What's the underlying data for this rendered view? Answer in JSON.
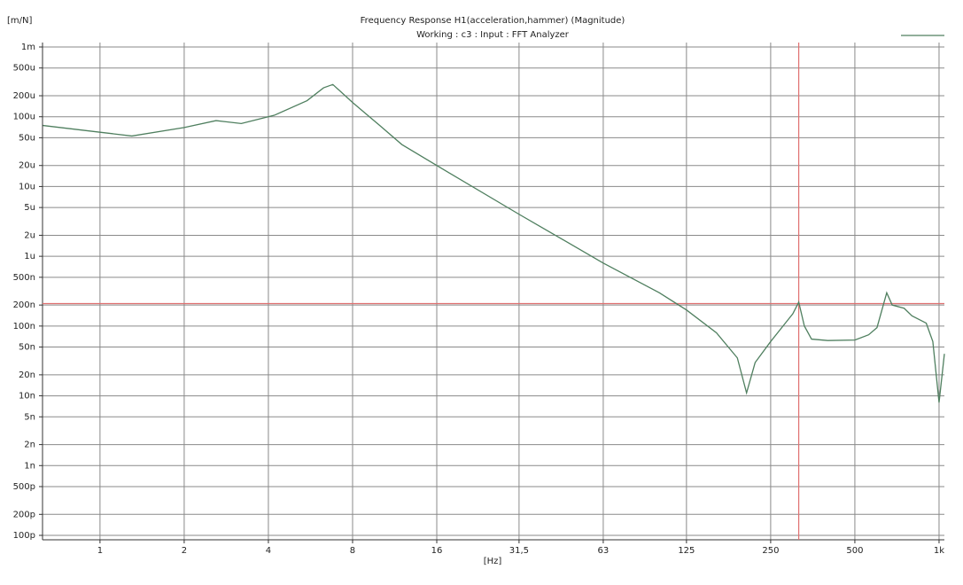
{
  "chart_data": {
    "type": "line",
    "title": "Frequency Response H1(acceleration,hammer) (Magnitude)",
    "subtitle": "Working : c3 : Input : FFT Analyzer",
    "y_label": "[m/N]",
    "x_label": "[Hz]",
    "x_scale": "log",
    "y_scale": "log",
    "grid": true,
    "x": [
      0.625,
      1,
      1.3,
      2,
      2.6,
      3.2,
      4.2,
      5.5,
      6.3,
      6.8,
      8,
      10,
      12,
      16,
      31.5,
      63,
      100,
      125,
      160,
      190,
      205,
      220,
      250,
      300,
      315,
      330,
      350,
      400,
      500,
      560,
      600,
      650,
      680,
      750,
      800,
      900,
      950,
      1000,
      1045
    ],
    "series": [
      {
        "color": "#4f7f5f",
        "values": [
          7.5e-05,
          6e-05,
          5.3e-05,
          7e-05,
          8.8e-05,
          8e-05,
          0.000105,
          0.00017,
          0.00026,
          0.00029,
          0.00016,
          7.5e-05,
          4e-05,
          2e-05,
          4e-06,
          8e-07,
          3e-07,
          1.7e-07,
          8e-08,
          3.5e-08,
          1.1e-08,
          3e-08,
          6e-08,
          1.5e-07,
          2.2e-07,
          1e-07,
          6.5e-08,
          6.2e-08,
          6.3e-08,
          7.5e-08,
          9.5e-08,
          3e-07,
          2e-07,
          1.8e-07,
          1.4e-07,
          1.1e-07,
          6e-08,
          8e-09,
          4e-08
        ]
      }
    ],
    "xlim": [
      0.623,
      1045
    ],
    "ylim": [
      1e-10,
      0.001
    ],
    "xticks": [
      1,
      2,
      4,
      8,
      16,
      {
        "value": 31.5,
        "label": "31,5"
      },
      63,
      125,
      250,
      500,
      {
        "value": 1000,
        "label": "1k"
      }
    ],
    "yticks": [
      {
        "value": 0.001,
        "label": "1m"
      },
      {
        "value": 0.0005,
        "label": "500u"
      },
      {
        "value": 0.0002,
        "label": "200u"
      },
      {
        "value": 0.0001,
        "label": "100u"
      },
      {
        "value": 5e-05,
        "label": "50u"
      },
      {
        "value": 2e-05,
        "label": "20u"
      },
      {
        "value": 1e-05,
        "label": "10u"
      },
      {
        "value": 5e-06,
        "label": "5u"
      },
      {
        "value": 2e-06,
        "label": "2u"
      },
      {
        "value": 1e-06,
        "label": "1u"
      },
      {
        "value": 5e-07,
        "label": "500n"
      },
      {
        "value": 2e-07,
        "label": "200n"
      },
      {
        "value": 1e-07,
        "label": "100n"
      },
      {
        "value": 5e-08,
        "label": "50n"
      },
      {
        "value": 2e-08,
        "label": "20n"
      },
      {
        "value": 1e-08,
        "label": "10n"
      },
      {
        "value": 5e-09,
        "label": "5n"
      },
      {
        "value": 2e-09,
        "label": "2n"
      },
      {
        "value": 1e-09,
        "label": "1n"
      },
      {
        "value": 5e-10,
        "label": "500p"
      },
      {
        "value": 2e-10,
        "label": "200p"
      },
      {
        "value": 1e-10,
        "label": "100p"
      }
    ],
    "cursor": {
      "x": 315,
      "y": 2.1e-07,
      "color": "#e07070"
    }
  }
}
